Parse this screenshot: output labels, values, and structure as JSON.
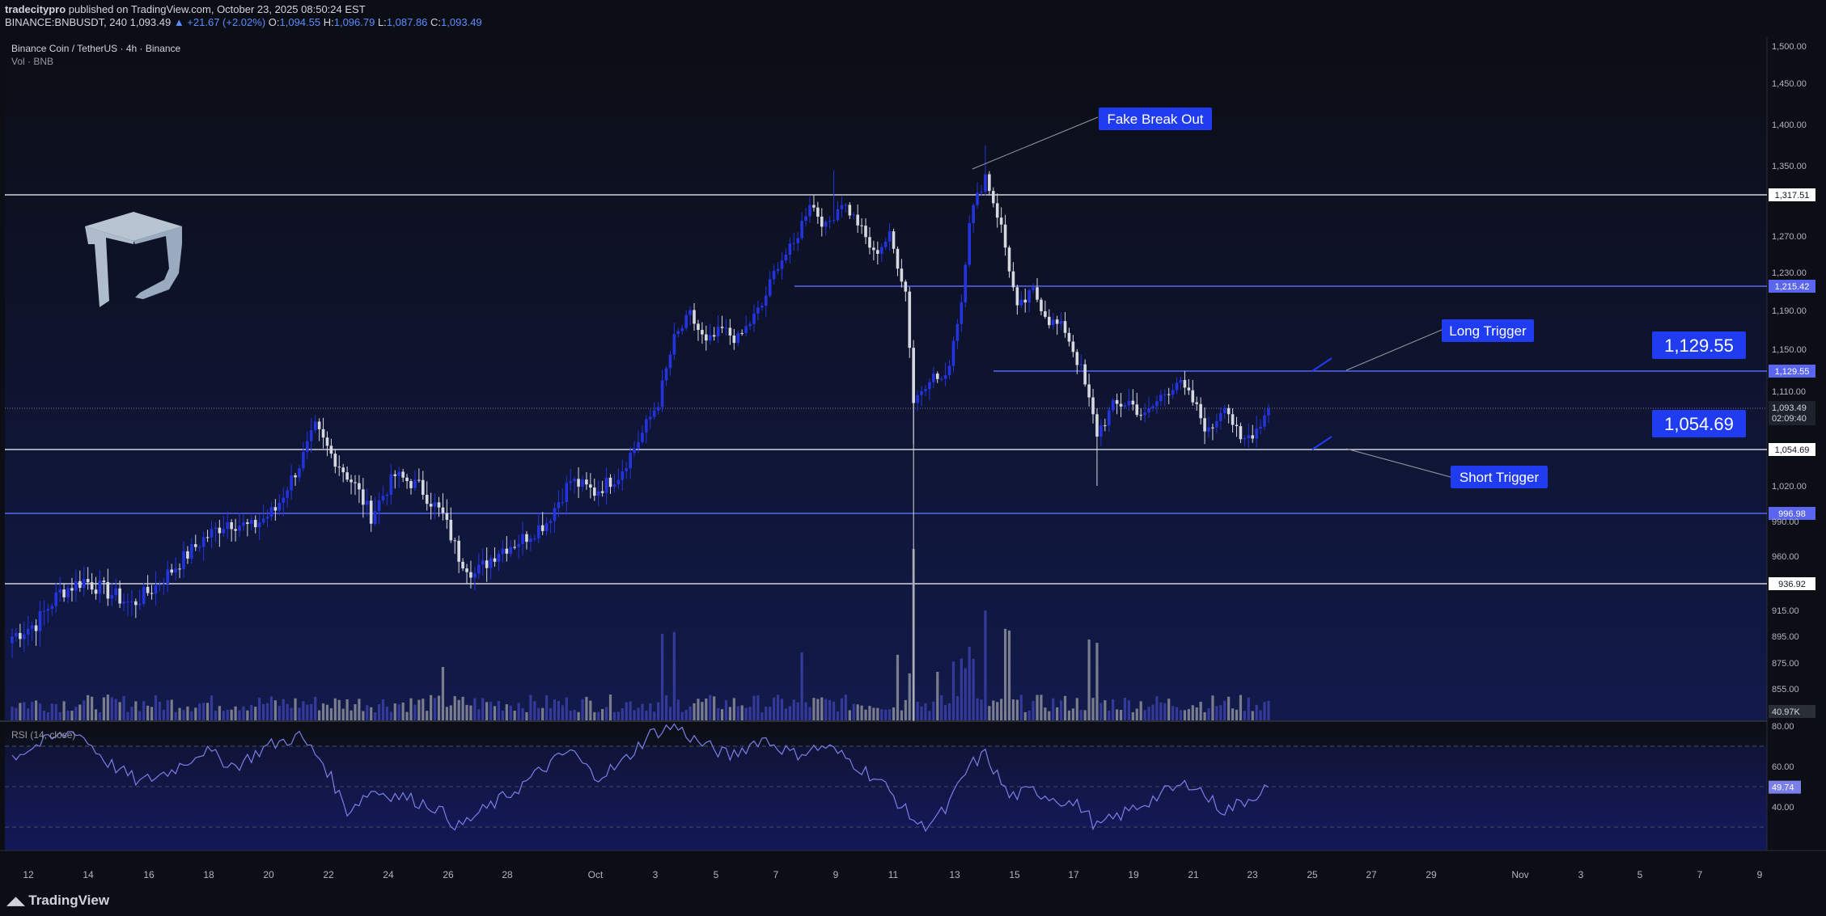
{
  "header": {
    "author": "tradecitypro",
    "published": " published on TradingView.com, October 23, 2025 08:50:24 EST",
    "symbol": "BINANCE:BNBUSDT, 240",
    "last": " 1,093.49 ",
    "change": "▲ +21.67 (+2.02%)",
    "o_label": " O:",
    "o": "1,094.55",
    "h_label": " H:",
    "h": "1,096.79",
    "l_label": " L:",
    "l": "1,087.86",
    "c_label": " C:",
    "c": "1,093.49"
  },
  "pane_title": "Binance Coin / TetherUS · 4h · Binance",
  "vol_title": "Vol · BNB",
  "rsi_title": "RSI (14, close)",
  "footer_brand": "TradingView",
  "annotations": {
    "fake_breakout": "Fake Break Out",
    "long_trigger": "Long Trigger",
    "short_trigger": "Short Trigger",
    "long_price": "1,129.55",
    "short_price": "1,054.69"
  },
  "colors": {
    "bg": "#0c0e15",
    "up": "#2433e0",
    "down": "#d6d9e0",
    "level_white": "#d1d4dc",
    "level_blue": "#5a66f0",
    "label_blue": "#1f3cf0",
    "rsi_line": "#7b7fe8"
  },
  "chart_data": {
    "type": "candlestick",
    "price_axis": {
      "ticks": [
        "1,500.00",
        "1,450.00",
        "1,400.00",
        "1,350.00",
        "1,270.00",
        "1,230.00",
        "1,190.00",
        "1,150.00",
        "1,110.00",
        "1,020.00",
        "990.00",
        "960.00",
        "915.00",
        "895.00",
        "875.00",
        "855.00"
      ],
      "current_price": "1,093.49",
      "countdown": "02:09:40",
      "volume_label": "40.97K"
    },
    "levels": [
      {
        "price": 1317.51,
        "label": "1,317.51",
        "color": "white"
      },
      {
        "price": 1215.42,
        "label": "1,215.42",
        "color": "blue"
      },
      {
        "price": 1129.55,
        "label": "1,129.55",
        "color": "blue"
      },
      {
        "price": 1054.69,
        "label": "1,054.69",
        "color": "white"
      },
      {
        "price": 996.98,
        "label": "996.98",
        "color": "blue"
      },
      {
        "price": 936.92,
        "label": "936.92",
        "color": "white"
      }
    ],
    "x_ticks": [
      "12",
      "14",
      "16",
      "18",
      "20",
      "22",
      "24",
      "26",
      "28",
      "Oct",
      "3",
      "5",
      "7",
      "9",
      "11",
      "13",
      "15",
      "17",
      "19",
      "21",
      "23",
      "25",
      "27",
      "29",
      "Nov",
      "3",
      "5",
      "7",
      "9"
    ],
    "rsi_ticks": [
      "80.00",
      "60.00",
      "40.00"
    ],
    "rsi_value": "49.74",
    "anchors": [
      {
        "i": 0,
        "p": 895
      },
      {
        "i": 6,
        "p": 905
      },
      {
        "i": 12,
        "p": 930
      },
      {
        "i": 18,
        "p": 940
      },
      {
        "i": 24,
        "p": 930
      },
      {
        "i": 30,
        "p": 920
      },
      {
        "i": 36,
        "p": 935
      },
      {
        "i": 42,
        "p": 955
      },
      {
        "i": 48,
        "p": 975
      },
      {
        "i": 54,
        "p": 990
      },
      {
        "i": 60,
        "p": 985
      },
      {
        "i": 66,
        "p": 1000
      },
      {
        "i": 72,
        "p": 1040
      },
      {
        "i": 76,
        "p": 1075
      },
      {
        "i": 80,
        "p": 1050
      },
      {
        "i": 86,
        "p": 1020
      },
      {
        "i": 90,
        "p": 995
      },
      {
        "i": 96,
        "p": 1030
      },
      {
        "i": 102,
        "p": 1020
      },
      {
        "i": 108,
        "p": 995
      },
      {
        "i": 112,
        "p": 960
      },
      {
        "i": 116,
        "p": 945
      },
      {
        "i": 122,
        "p": 965
      },
      {
        "i": 128,
        "p": 975
      },
      {
        "i": 134,
        "p": 990
      },
      {
        "i": 140,
        "p": 1025
      },
      {
        "i": 146,
        "p": 1015
      },
      {
        "i": 152,
        "p": 1030
      },
      {
        "i": 158,
        "p": 1070
      },
      {
        "i": 162,
        "p": 1100
      },
      {
        "i": 166,
        "p": 1160
      },
      {
        "i": 170,
        "p": 1185
      },
      {
        "i": 174,
        "p": 1155
      },
      {
        "i": 178,
        "p": 1170
      },
      {
        "i": 182,
        "p": 1160
      },
      {
        "i": 188,
        "p": 1195
      },
      {
        "i": 192,
        "p": 1240
      },
      {
        "i": 196,
        "p": 1260
      },
      {
        "i": 200,
        "p": 1310
      },
      {
        "i": 204,
        "p": 1280
      },
      {
        "i": 208,
        "p": 1310
      },
      {
        "i": 212,
        "p": 1285
      },
      {
        "i": 216,
        "p": 1250
      },
      {
        "i": 220,
        "p": 1270
      },
      {
        "i": 224,
        "p": 1210
      },
      {
        "i": 226,
        "p": 1100
      },
      {
        "i": 230,
        "p": 1125
      },
      {
        "i": 234,
        "p": 1120
      },
      {
        "i": 238,
        "p": 1200
      },
      {
        "i": 240,
        "p": 1290
      },
      {
        "i": 244,
        "p": 1340
      },
      {
        "i": 248,
        "p": 1280
      },
      {
        "i": 252,
        "p": 1190
      },
      {
        "i": 256,
        "p": 1210
      },
      {
        "i": 260,
        "p": 1180
      },
      {
        "i": 264,
        "p": 1170
      },
      {
        "i": 268,
        "p": 1130
      },
      {
        "i": 272,
        "p": 1070
      },
      {
        "i": 276,
        "p": 1095
      },
      {
        "i": 280,
        "p": 1100
      },
      {
        "i": 284,
        "p": 1085
      },
      {
        "i": 288,
        "p": 1105
      },
      {
        "i": 292,
        "p": 1120
      },
      {
        "i": 296,
        "p": 1100
      },
      {
        "i": 300,
        "p": 1070
      },
      {
        "i": 304,
        "p": 1100
      },
      {
        "i": 308,
        "p": 1060
      },
      {
        "i": 312,
        "p": 1075
      },
      {
        "i": 315,
        "p": 1093
      }
    ],
    "rsi_anchors": [
      {
        "i": 0,
        "v": 65
      },
      {
        "i": 8,
        "v": 72
      },
      {
        "i": 16,
        "v": 78
      },
      {
        "i": 24,
        "v": 62
      },
      {
        "i": 32,
        "v": 52
      },
      {
        "i": 40,
        "v": 58
      },
      {
        "i": 48,
        "v": 68
      },
      {
        "i": 56,
        "v": 60
      },
      {
        "i": 64,
        "v": 70
      },
      {
        "i": 72,
        "v": 75
      },
      {
        "i": 78,
        "v": 62
      },
      {
        "i": 84,
        "v": 38
      },
      {
        "i": 90,
        "v": 48
      },
      {
        "i": 98,
        "v": 45
      },
      {
        "i": 106,
        "v": 40
      },
      {
        "i": 112,
        "v": 30
      },
      {
        "i": 118,
        "v": 38
      },
      {
        "i": 126,
        "v": 48
      },
      {
        "i": 134,
        "v": 60
      },
      {
        "i": 140,
        "v": 68
      },
      {
        "i": 146,
        "v": 55
      },
      {
        "i": 152,
        "v": 60
      },
      {
        "i": 160,
        "v": 76
      },
      {
        "i": 166,
        "v": 80
      },
      {
        "i": 172,
        "v": 72
      },
      {
        "i": 180,
        "v": 65
      },
      {
        "i": 188,
        "v": 74
      },
      {
        "i": 196,
        "v": 66
      },
      {
        "i": 204,
        "v": 70
      },
      {
        "i": 210,
        "v": 63
      },
      {
        "i": 218,
        "v": 52
      },
      {
        "i": 224,
        "v": 38
      },
      {
        "i": 228,
        "v": 30
      },
      {
        "i": 234,
        "v": 38
      },
      {
        "i": 240,
        "v": 60
      },
      {
        "i": 244,
        "v": 66
      },
      {
        "i": 250,
        "v": 45
      },
      {
        "i": 256,
        "v": 48
      },
      {
        "i": 262,
        "v": 44
      },
      {
        "i": 268,
        "v": 40
      },
      {
        "i": 272,
        "v": 30
      },
      {
        "i": 278,
        "v": 36
      },
      {
        "i": 284,
        "v": 42
      },
      {
        "i": 290,
        "v": 48
      },
      {
        "i": 296,
        "v": 52
      },
      {
        "i": 300,
        "v": 44
      },
      {
        "i": 304,
        "v": 38
      },
      {
        "i": 310,
        "v": 44
      },
      {
        "i": 315,
        "v": 50
      }
    ]
  }
}
